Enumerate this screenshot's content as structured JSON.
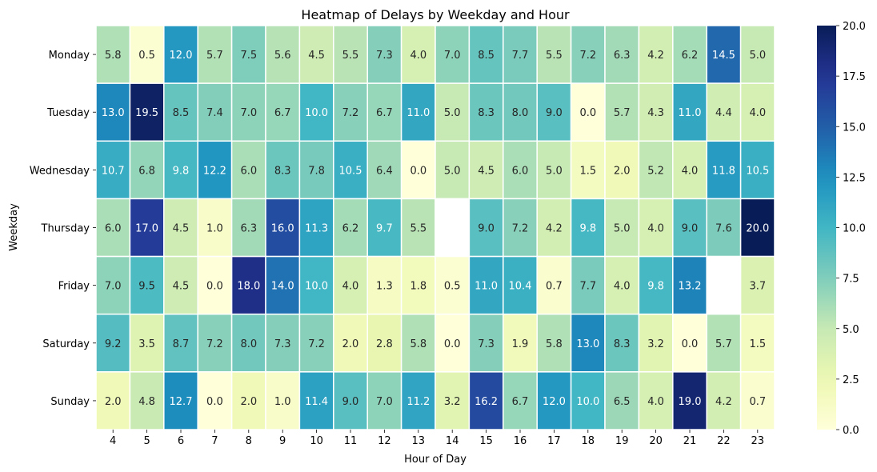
{
  "chart_data": {
    "type": "heatmap",
    "title": "Heatmap of Delays by Weekday and Hour",
    "xlabel": "Hour of Day",
    "ylabel": "Weekday",
    "x_categories": [
      "4",
      "5",
      "6",
      "7",
      "8",
      "9",
      "10",
      "11",
      "12",
      "13",
      "14",
      "15",
      "16",
      "17",
      "18",
      "19",
      "20",
      "21",
      "22",
      "23"
    ],
    "y_categories": [
      "Monday",
      "Tuesday",
      "Wednesday",
      "Thursday",
      "Friday",
      "Saturday",
      "Sunday"
    ],
    "values": [
      [
        5.8,
        0.5,
        12.0,
        5.7,
        7.5,
        5.6,
        4.5,
        5.5,
        7.3,
        4.0,
        7.0,
        8.5,
        7.7,
        5.5,
        7.2,
        6.3,
        4.2,
        6.2,
        14.5,
        5.0
      ],
      [
        13.0,
        19.5,
        8.5,
        7.4,
        7.0,
        6.7,
        10.0,
        7.2,
        6.7,
        11.0,
        5.0,
        8.3,
        8.0,
        9.0,
        0.0,
        5.7,
        4.3,
        11.0,
        4.4,
        4.0
      ],
      [
        10.7,
        6.8,
        9.8,
        12.2,
        6.0,
        8.3,
        7.8,
        10.5,
        6.4,
        0.0,
        5.0,
        4.5,
        6.0,
        5.0,
        1.5,
        2.0,
        5.2,
        4.0,
        11.8,
        10.5
      ],
      [
        6.0,
        17.0,
        4.5,
        1.0,
        6.3,
        16.0,
        11.3,
        6.2,
        9.7,
        5.5,
        null,
        9.0,
        7.2,
        4.2,
        9.8,
        5.0,
        4.0,
        9.0,
        7.6,
        20.0
      ],
      [
        7.0,
        9.5,
        4.5,
        0.0,
        18.0,
        14.0,
        10.0,
        4.0,
        1.3,
        1.8,
        0.5,
        11.0,
        10.4,
        0.7,
        7.7,
        4.0,
        9.8,
        13.2,
        null,
        3.7
      ],
      [
        9.2,
        3.5,
        8.7,
        7.2,
        8.0,
        7.3,
        7.2,
        2.0,
        2.8,
        5.8,
        0.0,
        7.3,
        1.9,
        5.8,
        13.0,
        8.3,
        3.2,
        0.0,
        5.7,
        1.5
      ],
      [
        2.0,
        4.8,
        12.7,
        0.0,
        2.0,
        1.0,
        11.4,
        9.0,
        7.0,
        11.2,
        3.2,
        16.2,
        6.7,
        12.0,
        10.0,
        6.5,
        4.0,
        19.0,
        4.2,
        0.7
      ]
    ],
    "vmin": 0,
    "vmax": 20,
    "colormap": "YlGnBu",
    "colorbar_ticks": [
      "0.0",
      "2.5",
      "5.0",
      "7.5",
      "10.0",
      "12.5",
      "15.0",
      "17.5",
      "20.0"
    ],
    "cell_border_color": "#ffffff"
  }
}
